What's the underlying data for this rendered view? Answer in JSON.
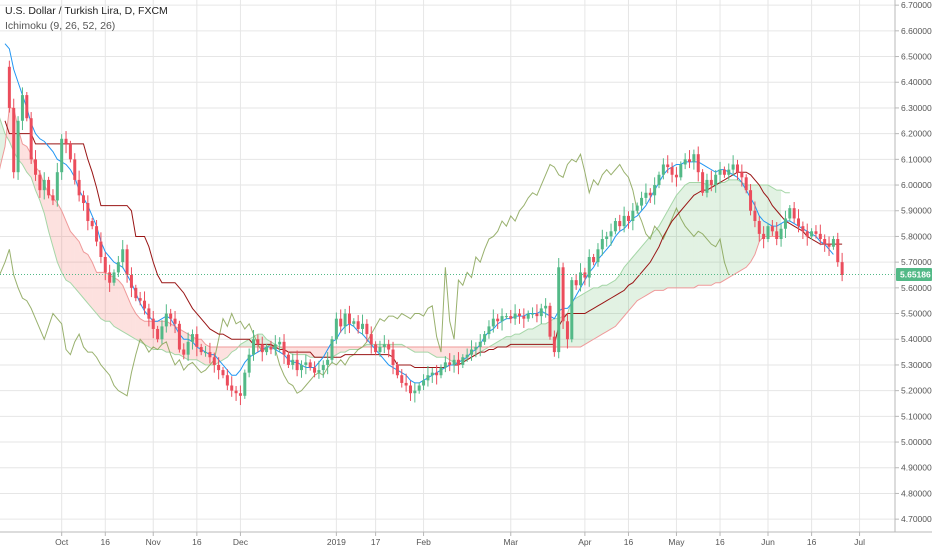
{
  "legend": {
    "title": "U.S. Dollar / Turkish Lira, D, FXCM",
    "indicator": "Ichimoku (9, 26, 52, 26)"
  },
  "colors": {
    "up": "#53b987",
    "down": "#eb4d5c",
    "conversion": "#2196f3",
    "base": "#991515",
    "lagging": "#7f9e4a",
    "spanA": "#a5d6a7",
    "spanB": "#ef9a9a",
    "grid": "#e6e6e6",
    "last": "#53b987"
  },
  "chart_data": {
    "type": "candlestick",
    "title": "U.S. Dollar / Turkish Lira, D, FXCM",
    "indicator": "Ichimoku (9, 26, 52, 26)",
    "ylim": [
      4.65,
      6.72
    ],
    "yticks": [
      "6.70000",
      "6.60000",
      "6.50000",
      "6.40000",
      "6.30000",
      "6.20000",
      "6.10000",
      "6.00000",
      "5.90000",
      "5.80000",
      "5.70000",
      "5.60000",
      "5.50000",
      "5.40000",
      "5.30000",
      "5.20000",
      "5.10000",
      "5.00000",
      "4.90000",
      "4.80000",
      "4.70000"
    ],
    "xticks": [
      "Oct",
      "16",
      "Nov",
      "16",
      "Dec",
      "2019",
      "17",
      "Feb",
      "Mar",
      "Apr",
      "16",
      "May",
      "16",
      "Jun",
      "16",
      "Jul"
    ],
    "xtick_index": [
      13,
      23,
      34,
      44,
      54,
      76,
      85,
      96,
      116,
      133,
      143,
      154,
      164,
      175,
      185,
      196
    ],
    "last_price": "5.65186",
    "close": [
      6.46,
      6.3,
      6.05,
      6.25,
      6.35,
      6.26,
      6.1,
      6.04,
      5.98,
      6.02,
      5.96,
      5.94,
      6.05,
      6.18,
      6.16,
      6.1,
      6.02,
      5.96,
      5.93,
      5.86,
      5.84,
      5.78,
      5.72,
      5.66,
      5.62,
      5.66,
      5.7,
      5.75,
      5.65,
      5.6,
      5.56,
      5.55,
      5.52,
      5.48,
      5.44,
      5.4,
      5.45,
      5.5,
      5.48,
      5.46,
      5.36,
      5.34,
      5.39,
      5.42,
      5.37,
      5.35,
      5.35,
      5.33,
      5.3,
      5.28,
      5.26,
      5.22,
      5.2,
      5.19,
      5.18,
      5.27,
      5.34,
      5.4,
      5.38,
      5.35,
      5.37,
      5.36,
      5.38,
      5.39,
      5.34,
      5.3,
      5.32,
      5.28,
      5.3,
      5.31,
      5.29,
      5.27,
      5.28,
      5.3,
      5.32,
      5.4,
      5.48,
      5.45,
      5.5,
      5.46,
      5.47,
      5.44,
      5.46,
      5.42,
      5.38,
      5.35,
      5.37,
      5.38,
      5.36,
      5.3,
      5.26,
      5.23,
      5.22,
      5.19,
      5.2,
      5.22,
      5.24,
      5.26,
      5.27,
      5.26,
      5.29,
      5.31,
      5.3,
      5.32,
      5.3,
      5.33,
      5.34,
      5.36,
      5.37,
      5.39,
      5.42,
      5.45,
      5.48,
      5.47,
      5.49,
      5.49,
      5.48,
      5.5,
      5.49,
      5.48,
      5.5,
      5.5,
      5.49,
      5.52,
      5.53,
      5.41,
      5.35,
      5.68,
      5.47,
      5.4,
      5.63,
      5.61,
      5.66,
      5.64,
      5.72,
      5.7,
      5.75,
      5.79,
      5.8,
      5.82,
      5.86,
      5.84,
      5.88,
      5.86,
      5.9,
      5.92,
      5.95,
      5.97,
      5.96,
      6.0,
      6.04,
      6.08,
      6.07,
      6.04,
      6.03,
      6.08,
      6.1,
      6.09,
      6.12,
      6.05,
      5.97,
      6.02,
      6.0,
      6.04,
      6.06,
      6.04,
      6.06,
      6.08,
      6.05,
      6.03,
      5.98,
      5.9,
      5.86,
      5.81,
      5.79,
      5.84,
      5.82,
      5.79,
      5.83,
      5.87,
      5.91,
      5.87,
      5.84,
      5.82,
      5.8,
      5.82,
      5.81,
      5.79,
      5.77,
      5.76,
      5.79,
      5.7,
      5.65
    ],
    "conversion": [
      6.55,
      6.53,
      6.45,
      6.4,
      6.35,
      6.3,
      6.24,
      6.2,
      6.18,
      6.17,
      6.15,
      6.13,
      6.1,
      6.09,
      6.08,
      6.06,
      6.03,
      5.98,
      5.95,
      5.92,
      5.88,
      5.84,
      5.78,
      5.74,
      5.72,
      5.7,
      5.69,
      5.68,
      5.65,
      5.62,
      5.58,
      5.54,
      5.51,
      5.49,
      5.47,
      5.47,
      5.48,
      5.49,
      5.48,
      5.45,
      5.42,
      5.4,
      5.4,
      5.39,
      5.37,
      5.36,
      5.35,
      5.34,
      5.34,
      5.32,
      5.3,
      5.28,
      5.26,
      5.26,
      5.28,
      5.31,
      5.33,
      5.34,
      5.35,
      5.36,
      5.37,
      5.37,
      5.36,
      5.35,
      5.34,
      5.32,
      5.31,
      5.31,
      5.3,
      5.29,
      5.29,
      5.29,
      5.31,
      5.33,
      5.36,
      5.39,
      5.4,
      5.43,
      5.45,
      5.46,
      5.45,
      5.43,
      5.42,
      5.4,
      5.38,
      5.36,
      5.34,
      5.32,
      5.3,
      5.29,
      5.28,
      5.27,
      5.26,
      5.24,
      5.23,
      5.23,
      5.24,
      5.25,
      5.26,
      5.27,
      5.28,
      5.29,
      5.3,
      5.3,
      5.31,
      5.32,
      5.33,
      5.35,
      5.36,
      5.38,
      5.41,
      5.43,
      5.44,
      5.46,
      5.47,
      5.48,
      5.48,
      5.49,
      5.49,
      5.49,
      5.5,
      5.5,
      5.5,
      5.51,
      5.5,
      5.49,
      5.48,
      5.51,
      5.52,
      5.52,
      5.54,
      5.57,
      5.6,
      5.63,
      5.66,
      5.68,
      5.71,
      5.73,
      5.75,
      5.77,
      5.8,
      5.82,
      5.83,
      5.85,
      5.87,
      5.88,
      5.9,
      5.92,
      5.95,
      5.98,
      6.01,
      6.04,
      6.06,
      6.07,
      6.08,
      6.08,
      6.09,
      6.09,
      6.09,
      6.09,
      6.08,
      6.07,
      6.06,
      6.05,
      6.06,
      6.06,
      6.05,
      6.04,
      6.03,
      6.01,
      5.98,
      5.95,
      5.92,
      5.88,
      5.86,
      5.85,
      5.84,
      5.84,
      5.85,
      5.86,
      5.86,
      5.85,
      5.84,
      5.83,
      5.82,
      5.81,
      5.8,
      5.78,
      5.77,
      5.75,
      5.73
    ],
    "base": [
      6.25,
      6.2,
      6.2,
      6.2,
      6.2,
      6.2,
      6.2,
      6.16,
      6.16,
      6.16,
      6.16,
      6.16,
      6.16,
      6.16,
      6.16,
      6.16,
      6.16,
      6.16,
      6.16,
      6.1,
      6.05,
      5.99,
      5.92,
      5.92,
      5.92,
      5.92,
      5.92,
      5.92,
      5.92,
      5.9,
      5.8,
      5.8,
      5.8,
      5.76,
      5.7,
      5.65,
      5.62,
      5.62,
      5.62,
      5.62,
      5.6,
      5.58,
      5.55,
      5.52,
      5.5,
      5.48,
      5.46,
      5.44,
      5.43,
      5.42,
      5.42,
      5.41,
      5.4,
      5.4,
      5.4,
      5.4,
      5.4,
      5.38,
      5.38,
      5.38,
      5.38,
      5.38,
      5.37,
      5.36,
      5.36,
      5.35,
      5.35,
      5.35,
      5.35,
      5.35,
      5.35,
      5.33,
      5.33,
      5.33,
      5.33,
      5.33,
      5.33,
      5.33,
      5.34,
      5.34,
      5.34,
      5.34,
      5.34,
      5.34,
      5.34,
      5.34,
      5.34,
      5.34,
      5.34,
      5.33,
      5.3,
      5.3,
      5.3,
      5.3,
      5.29,
      5.29,
      5.29,
      5.29,
      5.29,
      5.29,
      5.29,
      5.29,
      5.3,
      5.3,
      5.3,
      5.31,
      5.32,
      5.33,
      5.34,
      5.35,
      5.35,
      5.36,
      5.36,
      5.37,
      5.37,
      5.37,
      5.38,
      5.38,
      5.38,
      5.38,
      5.38,
      5.38,
      5.38,
      5.38,
      5.38,
      5.38,
      5.38,
      5.45,
      5.48,
      5.5,
      5.5,
      5.5,
      5.5,
      5.5,
      5.51,
      5.52,
      5.53,
      5.54,
      5.55,
      5.56,
      5.57,
      5.58,
      5.59,
      5.61,
      5.62,
      5.64,
      5.66,
      5.68,
      5.7,
      5.73,
      5.76,
      5.8,
      5.83,
      5.86,
      5.88,
      5.9,
      5.92,
      5.94,
      5.96,
      5.97,
      5.98,
      5.98,
      5.99,
      6.0,
      6.01,
      6.02,
      6.03,
      6.04,
      6.05,
      6.05,
      6.05,
      6.04,
      6.02,
      6.0,
      5.97,
      5.95,
      5.92,
      5.9,
      5.88,
      5.86,
      5.85,
      5.84,
      5.83,
      5.82,
      5.8,
      5.79,
      5.78,
      5.77,
      5.77,
      5.77,
      5.77,
      5.77,
      5.77
    ],
    "span_shift": 26,
    "spanA": [
      5.86,
      5.92,
      6.02,
      6.05,
      6.05,
      6.06,
      6.08,
      6.1,
      6.12,
      6.13,
      6.15,
      6.17,
      6.2,
      6.24,
      6.27,
      6.3,
      6.32,
      6.33,
      6.34,
      6.36,
      6.37,
      6.38,
      6.36,
      6.33,
      6.3,
      6.25,
      6.2,
      6.17,
      6.13,
      6.1,
      6.08,
      6.05,
      6.03,
      5.98,
      5.94,
      5.89,
      5.82,
      5.76,
      5.7,
      5.66,
      5.63,
      5.62,
      5.6,
      5.58,
      5.56,
      5.54,
      5.52,
      5.5,
      5.48,
      5.47,
      5.47,
      5.45,
      5.44,
      5.43,
      5.42,
      5.41,
      5.4,
      5.39,
      5.38,
      5.37,
      5.36,
      5.36,
      5.36,
      5.35,
      5.35,
      5.34,
      5.34,
      5.33,
      5.32,
      5.32,
      5.32,
      5.31,
      5.3,
      5.3,
      5.3,
      5.31,
      5.32,
      5.33,
      5.35,
      5.36,
      5.38,
      5.39,
      5.4,
      5.41,
      5.42,
      5.42,
      5.4,
      5.39,
      5.38,
      5.37,
      5.36,
      5.35,
      5.34,
      5.34,
      5.34,
      5.34,
      5.33,
      5.33,
      5.33,
      5.33,
      5.33,
      5.33,
      5.34,
      5.35,
      5.35,
      5.36,
      5.36,
      5.36,
      5.37,
      5.38,
      5.38,
      5.38,
      5.38,
      5.38,
      5.38,
      5.38,
      5.38,
      5.38,
      5.37,
      5.36,
      5.35,
      5.35,
      5.35,
      5.35,
      5.34,
      5.33,
      5.33,
      5.33,
      5.32,
      5.31,
      5.31,
      5.32,
      5.32,
      5.33,
      5.34,
      5.35,
      5.36,
      5.37,
      5.38,
      5.39,
      5.4,
      5.41,
      5.41,
      5.42,
      5.42,
      5.43,
      5.44,
      5.44,
      5.45,
      5.46,
      5.46,
      5.47,
      5.48,
      5.48,
      5.49,
      5.5,
      5.55,
      5.56,
      5.57,
      5.58,
      5.59,
      5.6,
      5.6,
      5.61,
      5.61,
      5.62,
      5.63,
      5.65,
      5.68,
      5.7,
      5.72,
      5.74,
      5.76,
      5.78,
      5.8,
      5.82,
      5.84,
      5.87,
      5.9,
      5.93,
      5.96,
      5.98,
      6.0,
      6.01,
      6.01,
      6.01,
      6.01,
      6.0,
      6.0,
      6.0,
      6.01,
      6.01,
      6.02,
      6.02,
      6.02,
      6.01,
      6.0,
      6.0,
      6.0,
      6.0,
      6.0,
      6.0,
      5.99,
      5.98,
      5.98,
      5.97,
      5.97
    ],
    "spanB": [
      5.78,
      5.78,
      5.78,
      5.78,
      5.78,
      5.78,
      5.78,
      5.78,
      5.78,
      5.78,
      5.78,
      5.78,
      5.78,
      5.78,
      5.78,
      5.78,
      5.9,
      5.92,
      5.92,
      5.92,
      5.93,
      5.93,
      5.93,
      5.94,
      6.0,
      6.08,
      6.15,
      6.3,
      6.3,
      6.22,
      6.16,
      6.15,
      6.12,
      6.07,
      6.05,
      6.0,
      5.97,
      5.95,
      5.93,
      5.9,
      5.86,
      5.82,
      5.8,
      5.78,
      5.74,
      5.73,
      5.7,
      5.66,
      5.66,
      5.66,
      5.65,
      5.64,
      5.63,
      5.61,
      5.57,
      5.53,
      5.5,
      5.48,
      5.47,
      5.47,
      5.47,
      5.47,
      5.47,
      5.47,
      5.46,
      5.45,
      5.44,
      5.43,
      5.42,
      5.41,
      5.4,
      5.4,
      5.38,
      5.37,
      5.37,
      5.37,
      5.37,
      5.37,
      5.37,
      5.37,
      5.37,
      5.37,
      5.37,
      5.37,
      5.37,
      5.37,
      5.37,
      5.37,
      5.37,
      5.37,
      5.37,
      5.37,
      5.37,
      5.37,
      5.37,
      5.37,
      5.37,
      5.37,
      5.37,
      5.37,
      5.37,
      5.37,
      5.37,
      5.37,
      5.37,
      5.37,
      5.37,
      5.37,
      5.37,
      5.37,
      5.37,
      5.37,
      5.37,
      5.37,
      5.37,
      5.37,
      5.37,
      5.37,
      5.37,
      5.37,
      5.37,
      5.37,
      5.37,
      5.37,
      5.37,
      5.37,
      5.37,
      5.37,
      5.37,
      5.37,
      5.37,
      5.37,
      5.37,
      5.37,
      5.37,
      5.37,
      5.37,
      5.37,
      5.37,
      5.37,
      5.37,
      5.37,
      5.37,
      5.37,
      5.37,
      5.37,
      5.37,
      5.37,
      5.37,
      5.37,
      5.37,
      5.37,
      5.37,
      5.37,
      5.37,
      5.37,
      5.37,
      5.37,
      5.37,
      5.38,
      5.39,
      5.4,
      5.41,
      5.42,
      5.43,
      5.44,
      5.45,
      5.47,
      5.49,
      5.51,
      5.53,
      5.55,
      5.56,
      5.57,
      5.58,
      5.59,
      5.59,
      5.59,
      5.6,
      5.6,
      5.6,
      5.6,
      5.6,
      5.6,
      5.6,
      5.61,
      5.61,
      5.61,
      5.61,
      5.62,
      5.62,
      5.63,
      5.64,
      5.65,
      5.66,
      5.67,
      5.68,
      5.7,
      5.73,
      5.78,
      5.8,
      5.8,
      5.8,
      5.8,
      5.8
    ]
  }
}
